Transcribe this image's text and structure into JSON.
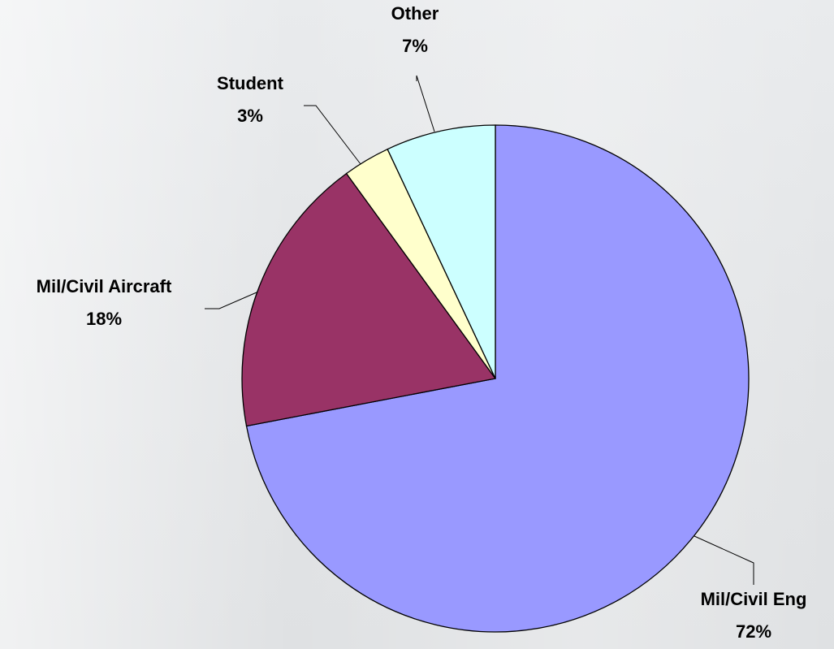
{
  "chart_data": {
    "type": "pie",
    "title": "",
    "slices": [
      {
        "label": "Mil/Civil Eng",
        "value": 72,
        "value_label": "72%",
        "color": "#9999ff"
      },
      {
        "label": "Mil/Civil Aircraft",
        "value": 18,
        "value_label": "18%",
        "color": "#993366"
      },
      {
        "label": "Student",
        "value": 3,
        "value_label": "3%",
        "color": "#ffffcc"
      },
      {
        "label": "Other",
        "value": 7,
        "value_label": "7%",
        "color": "#ccffff"
      }
    ],
    "start": "12 o'clock",
    "direction": "clockwise",
    "legend": "none"
  }
}
